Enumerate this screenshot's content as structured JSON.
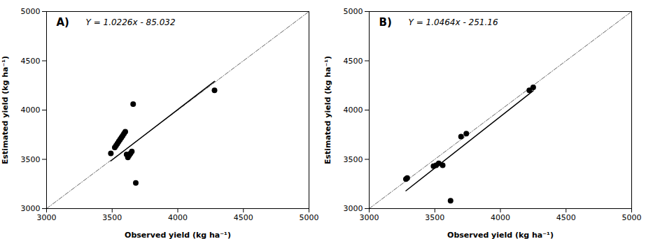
{
  "chart_data": [
    {
      "type": "scatter",
      "xlabel": "Observed yield (kg ha⁻¹)",
      "ylabel": "Estimated yield (kg ha⁻¹)",
      "annotations": [
        "A)",
        "Y = 1.0226x - 85.032"
      ],
      "xlim": [
        3000,
        5000
      ],
      "ylim": [
        3000,
        5000
      ],
      "xticks": [
        3000,
        3500,
        4000,
        4500,
        5000
      ],
      "yticks": [
        3000,
        3500,
        4000,
        4500,
        5000
      ],
      "grid": false,
      "series": [
        {
          "type": "line",
          "line_style": "dashdot",
          "color": "#666666",
          "x": [
            3000,
            5000
          ],
          "values": [
            3000,
            5000
          ]
        },
        {
          "type": "line",
          "line_style": "solid",
          "color": "#000000",
          "x": [
            3490,
            4280
          ],
          "values": [
            3483.842,
            4291.696
          ]
        },
        {
          "type": "scatter",
          "marker": "circle",
          "color": "#000000",
          "x": [
            3490,
            3520,
            3530,
            3540,
            3550,
            3560,
            3570,
            3580,
            3590,
            3600,
            3610,
            3620,
            3630,
            3640,
            3650,
            3660,
            3680,
            4280
          ],
          "values": [
            3560,
            3620,
            3640,
            3660,
            3680,
            3700,
            3720,
            3740,
            3760,
            3780,
            3550,
            3520,
            3540,
            3560,
            3580,
            4060,
            3260,
            4200
          ]
        }
      ]
    },
    {
      "type": "scatter",
      "xlabel": "Observed yield (kg ha⁻¹)",
      "ylabel": "Estimated yield (kg ha⁻¹)",
      "annotations": [
        "B)",
        "Y = 1.0464x - 251.16"
      ],
      "xlim": [
        3000,
        5000
      ],
      "ylim": [
        3000,
        5000
      ],
      "xticks": [
        3000,
        3500,
        4000,
        4500,
        5000
      ],
      "yticks": [
        3000,
        3500,
        4000,
        4500,
        5000
      ],
      "grid": false,
      "series": [
        {
          "type": "line",
          "line_style": "dashdot",
          "color": "#666666",
          "x": [
            3000,
            5000
          ],
          "values": [
            3000,
            5000
          ]
        },
        {
          "type": "line",
          "line_style": "solid",
          "color": "#000000",
          "x": [
            3280,
            4250
          ],
          "values": [
            3181.032,
            4196.04
          ]
        },
        {
          "type": "scatter",
          "marker": "circle",
          "color": "#000000",
          "x": [
            3280,
            3290,
            3490,
            3510,
            3530,
            3560,
            3700,
            3740,
            4220,
            4250,
            3620
          ],
          "values": [
            3300,
            3310,
            3430,
            3440,
            3460,
            3440,
            3730,
            3760,
            4200,
            4230,
            3080
          ]
        }
      ]
    }
  ]
}
